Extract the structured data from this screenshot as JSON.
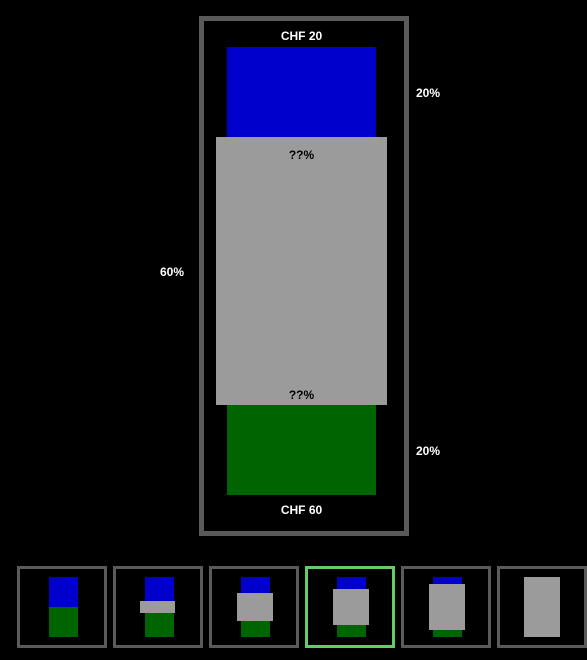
{
  "main": {
    "top_label": "CHF  20",
    "bottom_label": "CHF  60",
    "middle_top_label": "??%",
    "middle_bottom_label": "??%",
    "right_top_percent": "20%",
    "left_middle_percent": "60%",
    "right_bottom_percent": "20%"
  },
  "colors": {
    "background": "#000000",
    "frame": "#5a5a5a",
    "blue": "#0000cc",
    "gray": "#9b9b9b",
    "green": "#006400",
    "selection": "#66cc66"
  },
  "thumbnails": {
    "count": 6,
    "selected_index": 3
  }
}
